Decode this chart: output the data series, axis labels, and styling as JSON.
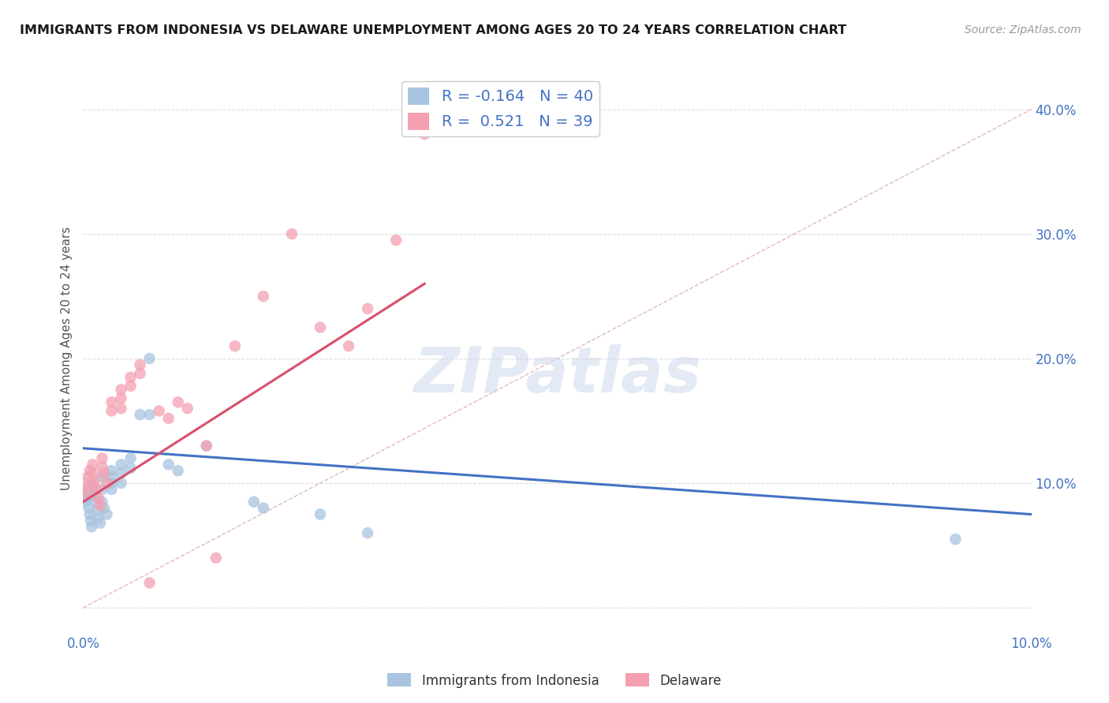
{
  "title": "IMMIGRANTS FROM INDONESIA VS DELAWARE UNEMPLOYMENT AMONG AGES 20 TO 24 YEARS CORRELATION CHART",
  "source": "Source: ZipAtlas.com",
  "ylabel": "Unemployment Among Ages 20 to 24 years",
  "legend_label1": "Immigrants from Indonesia",
  "legend_label2": "Delaware",
  "r1": "-0.164",
  "n1": "40",
  "r2": "0.521",
  "n2": "39",
  "color_blue": "#a8c4e0",
  "color_pink": "#f4a0b0",
  "line_color_blue": "#4472c4",
  "line_color_pink": "#d94f6b",
  "dashed_line_color": "#e0b0b8",
  "title_color": "#1a1a1a",
  "source_color": "#999999",
  "axis_color": "#4472c4",
  "xlim": [
    0.0,
    0.1
  ],
  "ylim": [
    -0.02,
    0.42
  ],
  "blue_scatter_x": [
    0.0002,
    0.0003,
    0.0004,
    0.0005,
    0.0006,
    0.0007,
    0.0008,
    0.0009,
    0.001,
    0.001,
    0.0012,
    0.0013,
    0.0015,
    0.0016,
    0.0018,
    0.002,
    0.002,
    0.002,
    0.0022,
    0.0025,
    0.003,
    0.003,
    0.003,
    0.003,
    0.004,
    0.004,
    0.004,
    0.005,
    0.005,
    0.006,
    0.007,
    0.007,
    0.009,
    0.01,
    0.013,
    0.018,
    0.019,
    0.025,
    0.03,
    0.092
  ],
  "blue_scatter_y": [
    0.085,
    0.092,
    0.095,
    0.088,
    0.08,
    0.075,
    0.07,
    0.065,
    0.1,
    0.095,
    0.09,
    0.085,
    0.078,
    0.072,
    0.068,
    0.105,
    0.095,
    0.085,
    0.08,
    0.075,
    0.11,
    0.105,
    0.1,
    0.095,
    0.115,
    0.108,
    0.1,
    0.12,
    0.112,
    0.155,
    0.155,
    0.2,
    0.115,
    0.11,
    0.13,
    0.085,
    0.08,
    0.075,
    0.06,
    0.055
  ],
  "pink_scatter_x": [
    0.0002,
    0.0003,
    0.0005,
    0.0007,
    0.0009,
    0.001,
    0.001,
    0.0012,
    0.0014,
    0.0016,
    0.0018,
    0.002,
    0.002,
    0.0022,
    0.0025,
    0.003,
    0.003,
    0.004,
    0.004,
    0.004,
    0.005,
    0.005,
    0.006,
    0.006,
    0.007,
    0.008,
    0.009,
    0.01,
    0.011,
    0.013,
    0.014,
    0.016,
    0.019,
    0.022,
    0.025,
    0.028,
    0.03,
    0.033,
    0.036
  ],
  "pink_scatter_y": [
    0.1,
    0.092,
    0.105,
    0.11,
    0.098,
    0.115,
    0.108,
    0.102,
    0.095,
    0.088,
    0.082,
    0.12,
    0.113,
    0.108,
    0.1,
    0.165,
    0.158,
    0.175,
    0.168,
    0.16,
    0.185,
    0.178,
    0.195,
    0.188,
    0.02,
    0.158,
    0.152,
    0.165,
    0.16,
    0.13,
    0.04,
    0.21,
    0.25,
    0.3,
    0.225,
    0.21,
    0.24,
    0.295,
    0.38
  ],
  "blue_line_x": [
    0.0,
    0.1
  ],
  "blue_line_y": [
    0.128,
    0.075
  ],
  "pink_line_x": [
    0.0,
    0.036
  ],
  "pink_line_y": [
    0.085,
    0.26
  ],
  "diag_line_x": [
    0.0,
    0.1
  ],
  "diag_line_y": [
    0.0,
    0.4
  ],
  "background_color": "#ffffff",
  "grid_color": "#dddddd"
}
